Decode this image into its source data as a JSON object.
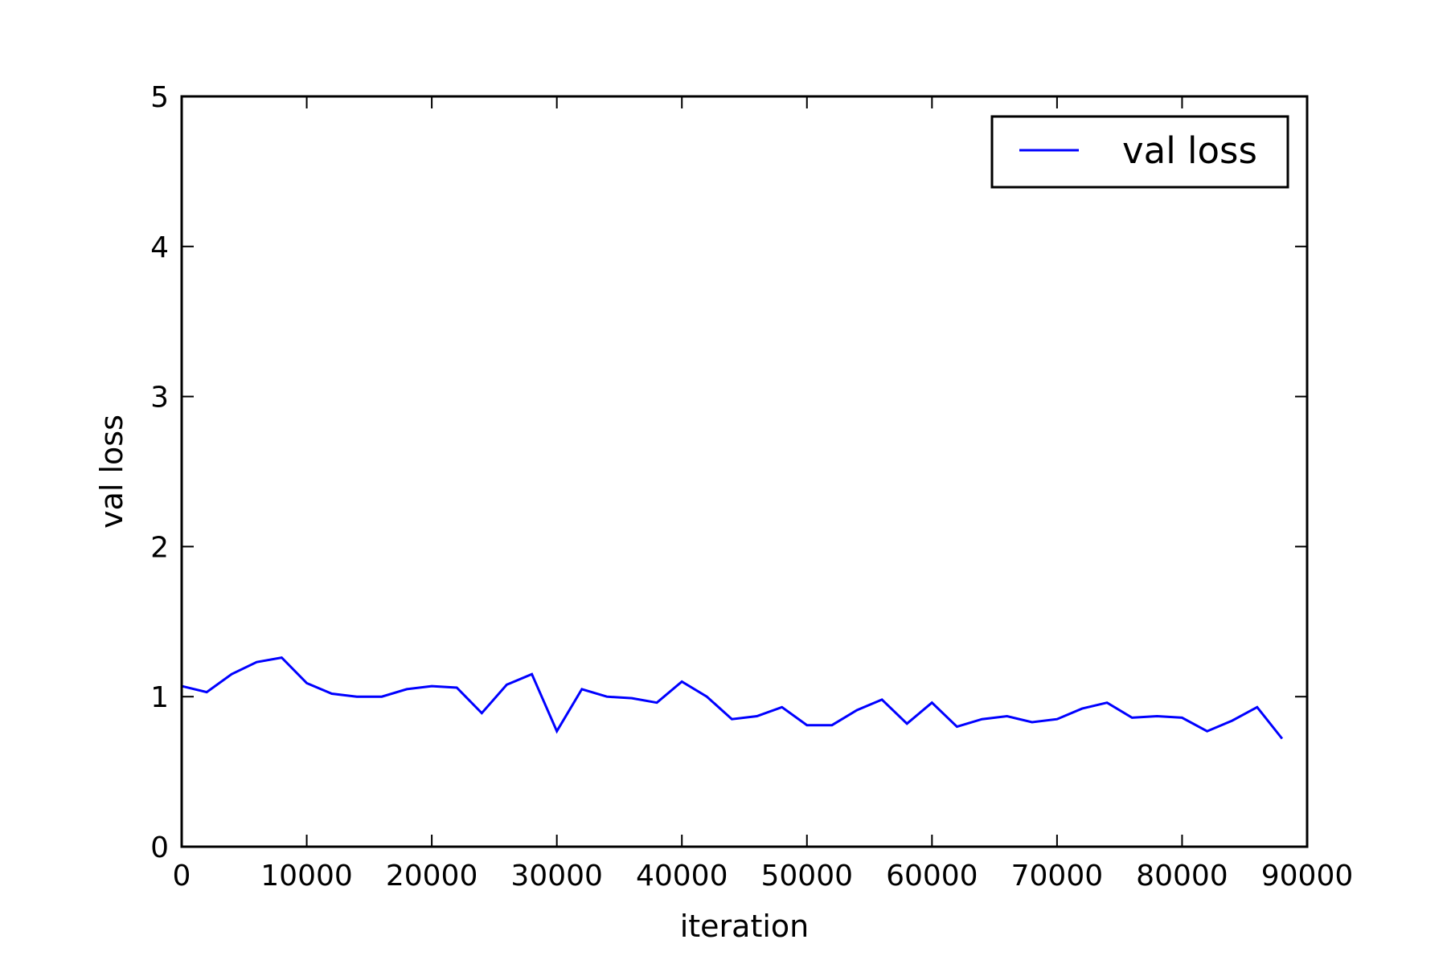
{
  "chart_data": {
    "type": "line",
    "title": "",
    "xlabel": "iteration",
    "ylabel": "val loss",
    "xlim": [
      0,
      90000
    ],
    "ylim": [
      0,
      5
    ],
    "x_ticks": [
      0,
      10000,
      20000,
      30000,
      40000,
      50000,
      60000,
      70000,
      80000,
      90000
    ],
    "x_tick_labels": [
      "0",
      "10000",
      "20000",
      "30000",
      "40000",
      "50000",
      "60000",
      "70000",
      "80000",
      "90000"
    ],
    "y_ticks": [
      0,
      1,
      2,
      3,
      4,
      5
    ],
    "y_tick_labels": [
      "0",
      "1",
      "2",
      "3",
      "4",
      "5"
    ],
    "grid": false,
    "legend": {
      "position": "top-right",
      "entries": [
        "val loss"
      ]
    },
    "series": [
      {
        "name": "val loss",
        "color": "#0000ff",
        "x": [
          0,
          2000,
          4000,
          6000,
          8000,
          10000,
          12000,
          14000,
          16000,
          18000,
          20000,
          22000,
          24000,
          26000,
          28000,
          30000,
          32000,
          34000,
          36000,
          38000,
          40000,
          42000,
          44000,
          46000,
          48000,
          50000,
          52000,
          54000,
          56000,
          58000,
          60000,
          62000,
          64000,
          66000,
          68000,
          70000,
          72000,
          74000,
          76000,
          78000,
          80000,
          82000,
          84000,
          86000,
          88000
        ],
        "y": [
          1.07,
          1.03,
          1.15,
          1.23,
          1.26,
          1.09,
          1.02,
          1.0,
          1.0,
          1.05,
          1.07,
          1.06,
          0.89,
          1.08,
          1.15,
          0.77,
          1.05,
          1.0,
          0.99,
          0.96,
          1.1,
          1.0,
          0.85,
          0.87,
          0.93,
          0.81,
          0.81,
          0.91,
          0.98,
          0.82,
          0.96,
          0.8,
          0.85,
          0.87,
          0.83,
          0.85,
          0.92,
          0.96,
          0.86,
          0.87,
          0.86,
          0.77,
          0.84,
          0.93,
          0.72
        ]
      }
    ]
  }
}
